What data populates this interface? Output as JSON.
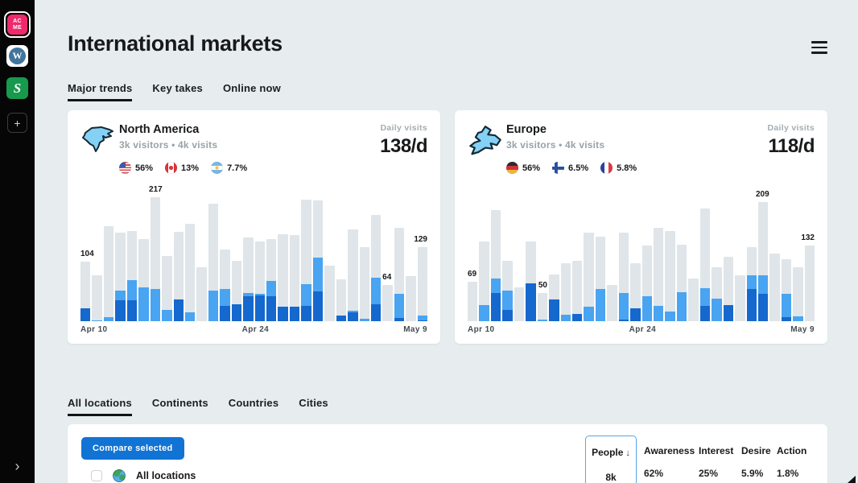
{
  "sidebar": {
    "acme_top": "AC",
    "acme_bottom": "ME",
    "wp_letter": "W",
    "s_letter": "S",
    "plus": "+",
    "chevron": "›"
  },
  "header": {
    "title": "International markets"
  },
  "trend_tabs": [
    {
      "label": "Major trends",
      "active": true
    },
    {
      "label": "Key takes",
      "active": false
    },
    {
      "label": "Online now",
      "active": false
    }
  ],
  "markets": [
    {
      "name": "North America",
      "subtitle": "3k visitors • 4k visits",
      "daily_label": "Daily visits",
      "daily_value": "138/d",
      "flags": [
        {
          "country": "us",
          "pct": "56%"
        },
        {
          "country": "ca",
          "pct": "13%"
        },
        {
          "country": "ar",
          "pct": "7.7%"
        }
      ]
    },
    {
      "name": "Europe",
      "subtitle": "3k visitors • 4k visits",
      "daily_label": "Daily visits",
      "daily_value": "118/d",
      "flags": [
        {
          "country": "de",
          "pct": "56%"
        },
        {
          "country": "fi",
          "pct": "6.5%"
        },
        {
          "country": "fr",
          "pct": "5.8%"
        }
      ]
    }
  ],
  "chart_data": [
    {
      "type": "bar",
      "title": "North America daily visits",
      "x_ticks": [
        "Apr 10",
        "Apr 24",
        "May 9"
      ],
      "ylim": [
        0,
        230
      ],
      "grid": false,
      "series_legend": [
        "total (gray)",
        "light blue segment",
        "dark blue segment"
      ],
      "bars_format": "[total, light, dark] visits per day",
      "bars": [
        [
          104,
          0,
          23
        ],
        [
          80,
          2,
          0
        ],
        [
          166,
          7,
          0
        ],
        [
          155,
          18,
          36
        ],
        [
          158,
          36,
          36
        ],
        [
          143,
          59,
          0
        ],
        [
          217,
          56,
          0
        ],
        [
          114,
          20,
          0
        ],
        [
          157,
          0,
          38
        ],
        [
          171,
          16,
          0
        ],
        [
          95,
          0,
          0
        ],
        [
          205,
          54,
          0
        ],
        [
          125,
          29,
          27
        ],
        [
          105,
          0,
          30
        ],
        [
          146,
          6,
          43
        ],
        [
          140,
          3,
          45
        ],
        [
          144,
          27,
          43
        ],
        [
          152,
          0,
          25
        ],
        [
          151,
          0,
          25
        ],
        [
          212,
          38,
          27
        ],
        [
          211,
          59,
          52
        ],
        [
          97,
          0,
          0
        ],
        [
          73,
          0,
          10
        ],
        [
          161,
          3,
          15
        ],
        [
          129,
          4,
          0
        ],
        [
          186,
          47,
          29
        ],
        [
          64,
          0,
          0
        ],
        [
          163,
          43,
          5
        ],
        [
          79,
          0,
          0
        ],
        [
          129,
          8,
          2
        ]
      ],
      "labels": {
        "0": "104",
        "6": "217",
        "26": "64",
        "29": "129"
      }
    },
    {
      "type": "bar",
      "title": "Europe daily visits",
      "x_ticks": [
        "Apr 10",
        "Apr 24",
        "May 9"
      ],
      "ylim": [
        0,
        230
      ],
      "grid": false,
      "series_legend": [
        "total (gray)",
        "light blue segment",
        "dark blue segment"
      ],
      "bars_format": "[total, light, dark] visits per day",
      "bars": [
        [
          69,
          0,
          0
        ],
        [
          140,
          28,
          0
        ],
        [
          195,
          26,
          49
        ],
        [
          106,
          34,
          20
        ],
        [
          59,
          0,
          0
        ],
        [
          139,
          0,
          66
        ],
        [
          50,
          3,
          0
        ],
        [
          82,
          0,
          38
        ],
        [
          102,
          11,
          0
        ],
        [
          106,
          0,
          13
        ],
        [
          155,
          26,
          0
        ],
        [
          148,
          56,
          0
        ],
        [
          64,
          0,
          0
        ],
        [
          155,
          47,
          3
        ],
        [
          102,
          0,
          22
        ],
        [
          133,
          44,
          0
        ],
        [
          164,
          27,
          0
        ],
        [
          158,
          17,
          0
        ],
        [
          134,
          51,
          0
        ],
        [
          75,
          0,
          0
        ],
        [
          197,
          31,
          27
        ],
        [
          94,
          40,
          0
        ],
        [
          113,
          0,
          28
        ],
        [
          80,
          0,
          0
        ],
        [
          130,
          25,
          56
        ],
        [
          209,
          33,
          48
        ],
        [
          118,
          0,
          0
        ],
        [
          108,
          41,
          7
        ],
        [
          94,
          8,
          0
        ],
        [
          132,
          0,
          0
        ]
      ],
      "labels": {
        "0": "69",
        "6": "50",
        "25": "209",
        "29": "132"
      }
    }
  ],
  "location_tabs": [
    {
      "label": "All locations",
      "active": true
    },
    {
      "label": "Continents",
      "active": false
    },
    {
      "label": "Countries",
      "active": false
    },
    {
      "label": "Cities",
      "active": false
    }
  ],
  "table": {
    "compare_button": "Compare selected",
    "row_label": "All locations",
    "columns": [
      {
        "label": "People",
        "sort_icon": "↓",
        "value": "8k",
        "selected": true
      },
      {
        "label": "Awareness",
        "value": "62%",
        "selected": false
      },
      {
        "label": "Interest",
        "value": "25%",
        "selected": false
      },
      {
        "label": "Desire",
        "value": "5.9%",
        "selected": false
      },
      {
        "label": "Action",
        "value": "1.8%",
        "selected": false
      }
    ]
  },
  "colors": {
    "background": "#e7edee",
    "sidebar": "#060606",
    "card": "#ffffff",
    "bar_gray": "#dfe5e8",
    "bar_light_blue": "#49a4f1",
    "bar_dark_blue": "#1568cd",
    "button_blue": "#1173d4",
    "acme_pink": "#ee2a6d",
    "selected_column_border": "#55a6e8"
  }
}
